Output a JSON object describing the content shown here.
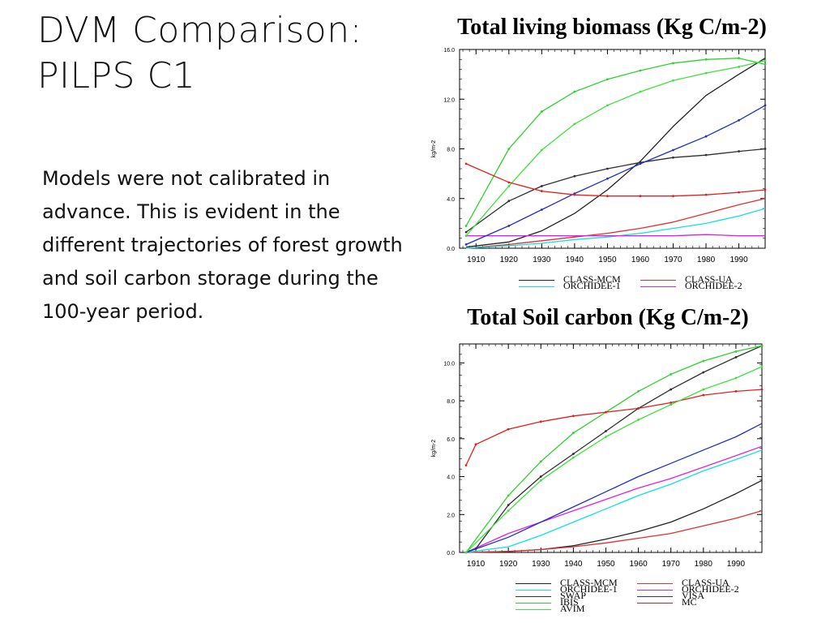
{
  "slide": {
    "title_line1": "DVM Comparison:",
    "title_line2": "PILPS C1",
    "body": "Models were not calibrated in advance.  This is evident in the different trajectories of forest growth and soil carbon storage during the 100-year period."
  },
  "colors": {
    "CLASS-MCM": "#222222",
    "CLASS-UA": "#e03030",
    "ORCHIDEE-1": "#10e0e0",
    "ORCHIDEE-2": "#e020e0",
    "SWAP": "#303030",
    "IBIS": "#30d030",
    "VISA": "#2030c0",
    "MC": "#e02020",
    "AVIM": "#40e040"
  },
  "chart_data": [
    {
      "type": "line",
      "title": "Total living biomass (Kg C/m-2)",
      "ylabel": "kg/m-2",
      "xlim": [
        1905,
        1998
      ],
      "ylim": [
        0,
        16
      ],
      "yticks": [
        "0.0",
        "4.0",
        "8.0",
        "12.0",
        "16.0"
      ],
      "xticks": [
        "1910",
        "1920",
        "1930",
        "1940",
        "1950",
        "1960",
        "1970",
        "1980",
        "1990"
      ],
      "legend": [
        "CLASS-MCM",
        "CLASS-UA",
        "ORCHIDEE-1",
        "ORCHIDEE-2"
      ],
      "series": [
        {
          "name": "CLASS-MCM",
          "color": "#222222",
          "x": [
            1907,
            1920,
            1930,
            1940,
            1950,
            1960,
            1970,
            1980,
            1990,
            1998
          ],
          "y": [
            0.1,
            0.5,
            1.4,
            2.8,
            4.7,
            7.0,
            9.8,
            12.3,
            14.0,
            15.3
          ]
        },
        {
          "name": "CLASS-UA",
          "color": "#e03030",
          "x": [
            1907,
            1920,
            1930,
            1940,
            1950,
            1960,
            1970,
            1980,
            1990,
            1998
          ],
          "y": [
            0.0,
            0.3,
            0.6,
            0.9,
            1.2,
            1.6,
            2.1,
            2.8,
            3.5,
            4.0
          ]
        },
        {
          "name": "ORCHIDEE-1",
          "color": "#10e0e0",
          "x": [
            1907,
            1920,
            1930,
            1940,
            1950,
            1960,
            1970,
            1980,
            1990,
            1998
          ],
          "y": [
            0.0,
            0.2,
            0.4,
            0.7,
            0.9,
            1.2,
            1.6,
            2.0,
            2.6,
            3.2
          ]
        },
        {
          "name": "ORCHIDEE-2",
          "color": "#e020e0",
          "x": [
            1907,
            1920,
            1930,
            1940,
            1950,
            1960,
            1970,
            1980,
            1990,
            1998
          ],
          "y": [
            1.0,
            1.0,
            1.0,
            1.0,
            1.0,
            1.0,
            1.0,
            1.1,
            1.0,
            1.0
          ]
        },
        {
          "name": "",
          "color": "#303030",
          "x": [
            1907,
            1920,
            1930,
            1940,
            1950,
            1960,
            1970,
            1980,
            1990,
            1998
          ],
          "y": [
            1.3,
            3.8,
            5.0,
            5.8,
            6.4,
            6.9,
            7.3,
            7.5,
            7.8,
            8.0
          ]
        },
        {
          "name": "",
          "color": "#30d030",
          "x": [
            1907,
            1920,
            1930,
            1940,
            1950,
            1960,
            1970,
            1980,
            1990,
            1998
          ],
          "y": [
            1.8,
            8.0,
            11.0,
            12.6,
            13.6,
            14.3,
            14.9,
            15.2,
            15.3,
            14.8
          ]
        },
        {
          "name": "",
          "color": "#40e040",
          "x": [
            1907,
            1920,
            1930,
            1940,
            1950,
            1960,
            1970,
            1980,
            1990,
            1998
          ],
          "y": [
            1.0,
            5.0,
            7.9,
            10.0,
            11.5,
            12.6,
            13.5,
            14.1,
            14.6,
            15.1
          ]
        },
        {
          "name": "",
          "color": "#2030c0",
          "x": [
            1907,
            1920,
            1930,
            1940,
            1950,
            1960,
            1970,
            1980,
            1990,
            1998
          ],
          "y": [
            0.3,
            1.8,
            3.1,
            4.4,
            5.6,
            6.8,
            7.9,
            9.0,
            10.3,
            11.5
          ]
        },
        {
          "name": "",
          "color": "#e02020",
          "x": [
            1907,
            1920,
            1930,
            1940,
            1950,
            1960,
            1970,
            1980,
            1990,
            1998
          ],
          "y": [
            6.8,
            5.3,
            4.6,
            4.3,
            4.2,
            4.2,
            4.2,
            4.3,
            4.5,
            4.7
          ]
        }
      ]
    },
    {
      "type": "line",
      "title": "Total Soil carbon (Kg C/m-2)",
      "ylabel": "kg/m-2",
      "xlim": [
        1905,
        1998
      ],
      "ylim": [
        0,
        11
      ],
      "yticks": [
        "0.0",
        "2.0",
        "4.0",
        "6.0",
        "8.0",
        "10.0"
      ],
      "xticks": [
        "1910",
        "1920",
        "1930",
        "1940",
        "1950",
        "1960",
        "1970",
        "1980",
        "1990"
      ],
      "legend": [
        "CLASS-MCM",
        "CLASS-UA",
        "ORCHIDEE-1",
        "ORCHIDEE-2",
        "SWAP",
        "VISA",
        "IBIS",
        "MC",
        "AVIM"
      ],
      "series": [
        {
          "name": "CLASS-MCM",
          "color": "#222222",
          "x": [
            1907,
            1920,
            1930,
            1940,
            1950,
            1960,
            1970,
            1980,
            1990,
            1998
          ],
          "y": [
            0.0,
            0.05,
            0.15,
            0.35,
            0.7,
            1.1,
            1.6,
            2.3,
            3.1,
            3.8
          ]
        },
        {
          "name": "CLASS-UA",
          "color": "#e03030",
          "x": [
            1907,
            1920,
            1930,
            1940,
            1950,
            1960,
            1970,
            1980,
            1990,
            1998
          ],
          "y": [
            0.0,
            0.05,
            0.15,
            0.3,
            0.5,
            0.75,
            1.0,
            1.4,
            1.8,
            2.2
          ]
        },
        {
          "name": "ORCHIDEE-1",
          "color": "#10e0e0",
          "x": [
            1907,
            1920,
            1930,
            1940,
            1950,
            1960,
            1970,
            1980,
            1990,
            1998
          ],
          "y": [
            0.0,
            0.3,
            0.9,
            1.6,
            2.3,
            3.0,
            3.6,
            4.3,
            4.9,
            5.4
          ]
        },
        {
          "name": "ORCHIDEE-2",
          "color": "#e020e0",
          "x": [
            1907,
            1920,
            1930,
            1940,
            1950,
            1960,
            1970,
            1980,
            1990,
            1998
          ],
          "y": [
            0.0,
            1.0,
            1.6,
            2.2,
            2.8,
            3.4,
            3.9,
            4.5,
            5.1,
            5.6
          ]
        },
        {
          "name": "SWAP",
          "color": "#303030",
          "x": [
            1907,
            1910,
            1920,
            1930,
            1940,
            1950,
            1960,
            1970,
            1980,
            1990,
            1998
          ],
          "y": [
            0.0,
            0.2,
            2.5,
            4.0,
            5.2,
            6.4,
            7.6,
            8.6,
            9.5,
            10.3,
            10.9
          ]
        },
        {
          "name": "VISA",
          "color": "#2030c0",
          "x": [
            1907,
            1920,
            1930,
            1940,
            1950,
            1960,
            1970,
            1980,
            1990,
            1998
          ],
          "y": [
            0.0,
            0.8,
            1.6,
            2.4,
            3.2,
            4.0,
            4.7,
            5.4,
            6.1,
            6.8
          ]
        },
        {
          "name": "IBIS",
          "color": "#30d030",
          "x": [
            1907,
            1920,
            1930,
            1940,
            1950,
            1960,
            1970,
            1980,
            1990,
            1998
          ],
          "y": [
            0.0,
            3.0,
            4.8,
            6.3,
            7.4,
            8.5,
            9.4,
            10.1,
            10.6,
            10.9
          ]
        },
        {
          "name": "MC",
          "color": "#e02020",
          "x": [
            1907,
            1910,
            1920,
            1930,
            1940,
            1950,
            1960,
            1970,
            1980,
            1990,
            1998
          ],
          "y": [
            4.6,
            5.7,
            6.5,
            6.9,
            7.2,
            7.4,
            7.6,
            7.9,
            8.3,
            8.5,
            8.6
          ]
        },
        {
          "name": "AVIM",
          "color": "#40e040",
          "x": [
            1907,
            1920,
            1930,
            1940,
            1950,
            1960,
            1970,
            1980,
            1990,
            1998
          ],
          "y": [
            0.0,
            2.2,
            3.8,
            5.0,
            6.1,
            7.0,
            7.8,
            8.6,
            9.2,
            9.8
          ]
        }
      ]
    }
  ]
}
